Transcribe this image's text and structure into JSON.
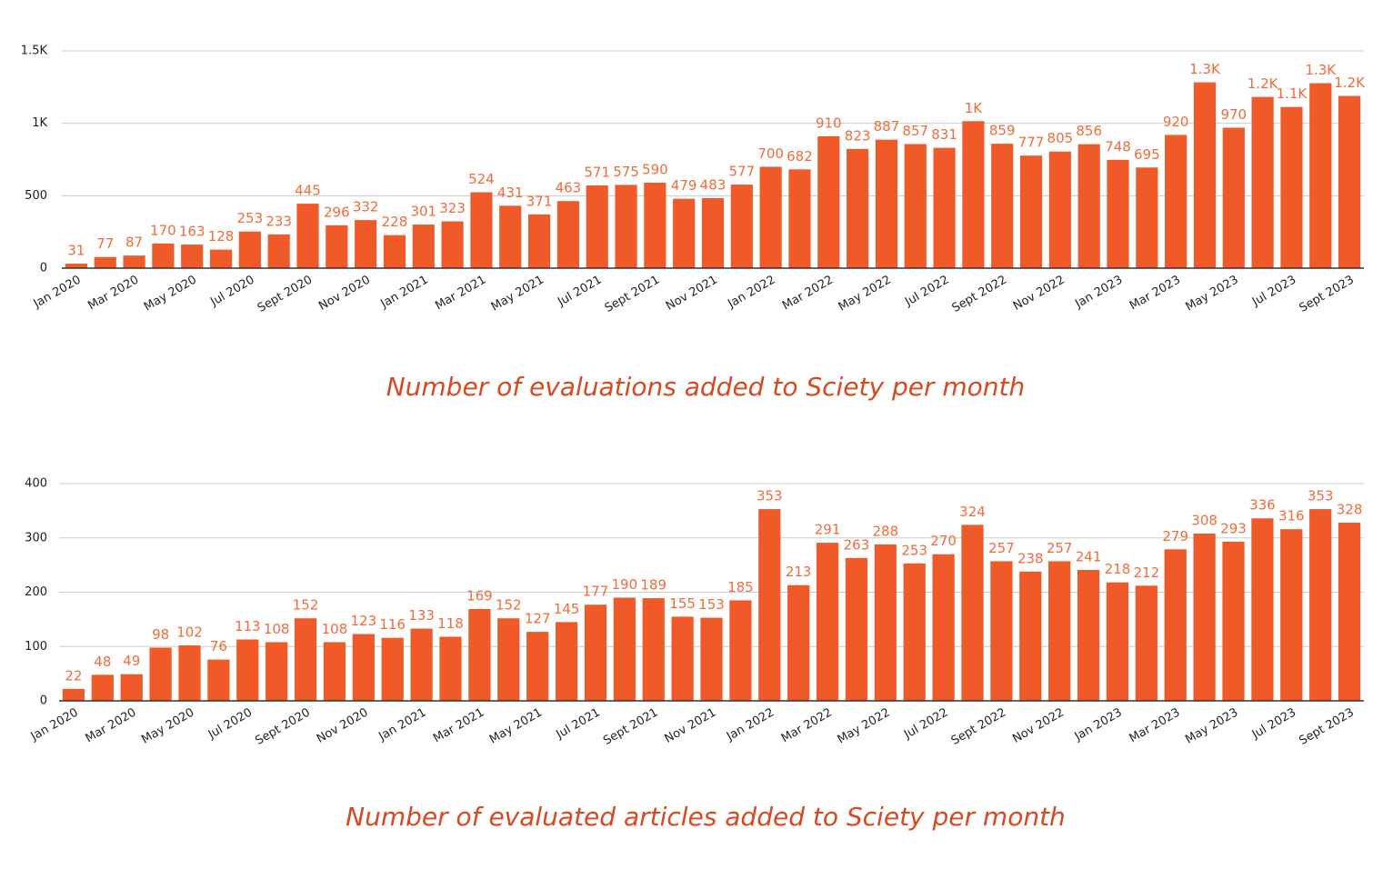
{
  "chart_data": [
    {
      "type": "bar",
      "title": "Number of evaluations added to Sciety per month",
      "color": "#f05a28",
      "grid": true,
      "categories": [
        "Jan 2020",
        null,
        "Mar 2020",
        null,
        "May 2020",
        null,
        "Jul 2020",
        null,
        "Sept 2020",
        null,
        "Nov 2020",
        null,
        "Jan 2021",
        null,
        "Mar 2021",
        null,
        "May 2021",
        null,
        "Jul 2021",
        null,
        "Sept 2021",
        null,
        "Nov 2021",
        null,
        "Jan 2022",
        null,
        "Mar 2022",
        null,
        "May 2022",
        null,
        "Jul 2022",
        null,
        "Sept 2022",
        null,
        "Nov 2022",
        null,
        "Jan 2023",
        null,
        "Mar 2023",
        null,
        "May 2023",
        null,
        "Jul 2023",
        null,
        "Sept 2023"
      ],
      "values": [
        31,
        77,
        87,
        170,
        163,
        128,
        253,
        233,
        445,
        296,
        332,
        228,
        301,
        323,
        524,
        431,
        371,
        463,
        571,
        575,
        590,
        479,
        483,
        577,
        700,
        682,
        910,
        823,
        887,
        857,
        831,
        1015,
        859,
        777,
        805,
        856,
        748,
        695,
        920,
        1283,
        970,
        1182,
        1113,
        1277,
        1189
      ],
      "value_labels": [
        "31",
        "77",
        "87",
        "170",
        "163",
        "128",
        "253",
        "233",
        "445",
        "296",
        "332",
        "228",
        "301",
        "323",
        "524",
        "431",
        "371",
        "463",
        "571",
        "575",
        "590",
        "479",
        "483",
        "577",
        "700",
        "682",
        "910",
        "823",
        "887",
        "857",
        "831",
        "1K",
        "859",
        "777",
        "805",
        "856",
        "748",
        "695",
        "920",
        "1.3K",
        "970",
        "1.2K",
        "1.1K",
        "1.3K",
        "1.2K"
      ],
      "ylim": [
        0,
        1500
      ],
      "yticks": [
        0,
        500,
        {
          "value": 1000,
          "label": "1K"
        },
        {
          "value": 1500,
          "label": "1.5K"
        }
      ]
    },
    {
      "type": "bar",
      "title": "Number of evaluated articles added to Sciety per month",
      "color": "#f05a28",
      "grid": true,
      "categories": [
        "Jan 2020",
        null,
        "Mar 2020",
        null,
        "May 2020",
        null,
        "Jul 2020",
        null,
        "Sept 2020",
        null,
        "Nov 2020",
        null,
        "Jan 2021",
        null,
        "Mar 2021",
        null,
        "May 2021",
        null,
        "Jul 2021",
        null,
        "Sept 2021",
        null,
        "Nov 2021",
        null,
        "Jan 2022",
        null,
        "Mar 2022",
        null,
        "May 2022",
        null,
        "Jul 2022",
        null,
        "Sept 2022",
        null,
        "Nov 2022",
        null,
        "Jan 2023",
        null,
        "Mar 2023",
        null,
        "May 2023",
        null,
        "Jul 2023",
        null,
        "Sept 2023"
      ],
      "values": [
        22,
        48,
        49,
        98,
        102,
        76,
        113,
        108,
        152,
        108,
        123,
        116,
        133,
        118,
        169,
        152,
        127,
        145,
        177,
        190,
        189,
        155,
        153,
        185,
        353,
        213,
        291,
        263,
        288,
        253,
        270,
        324,
        257,
        238,
        257,
        241,
        218,
        212,
        279,
        308,
        293,
        336,
        316,
        353,
        328
      ],
      "ylim": [
        0,
        400
      ],
      "yticks": [
        0,
        100,
        200,
        300,
        400
      ]
    }
  ]
}
